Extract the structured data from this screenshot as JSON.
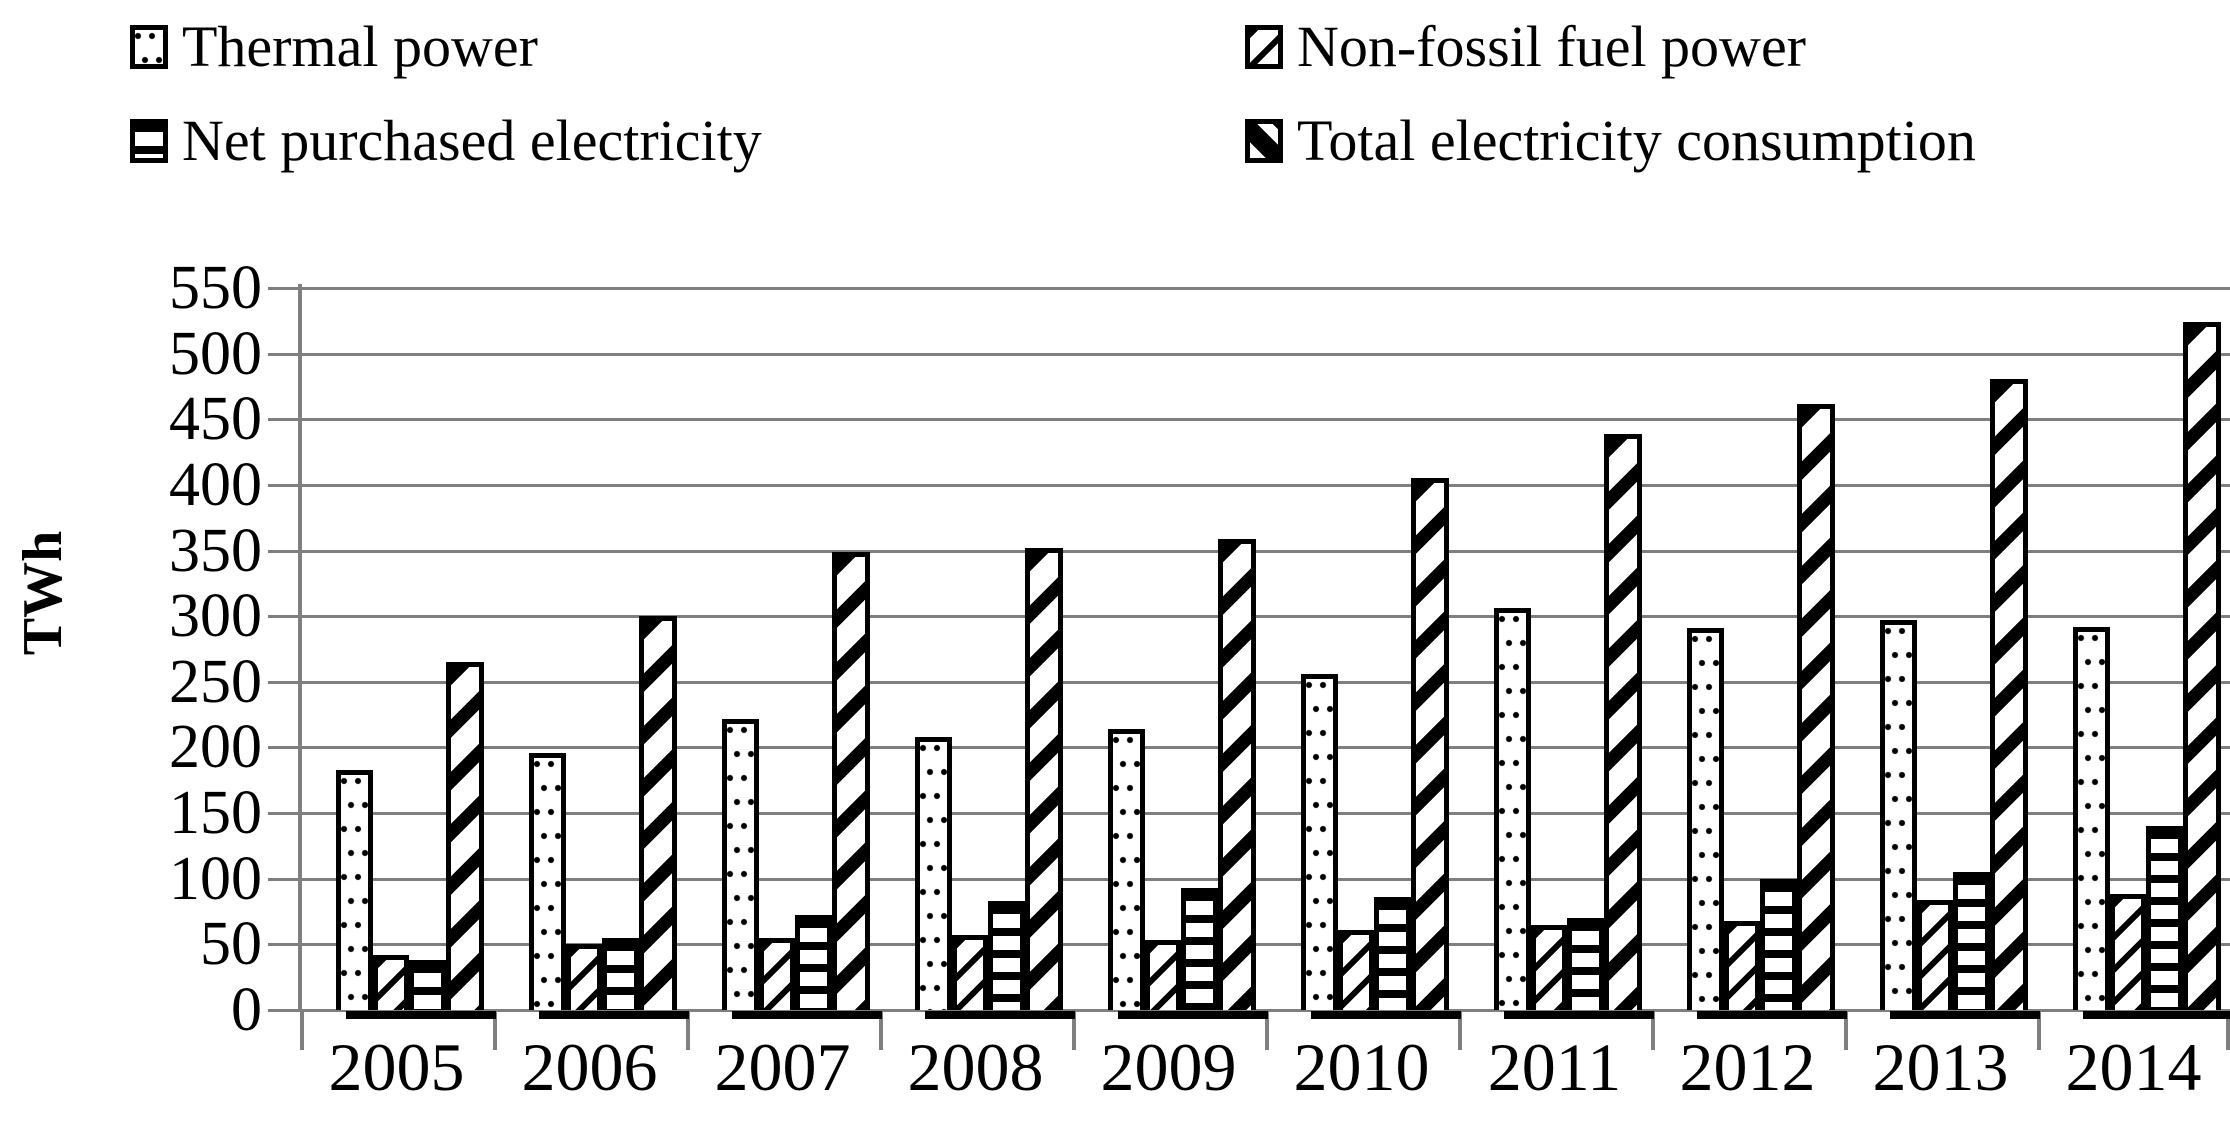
{
  "page": {
    "background": "#ffffff"
  },
  "colors": {
    "grid": "#7f7f7f",
    "bar_border": "#000000",
    "text": "#000000"
  },
  "legend": {
    "position": "top",
    "columns": 2,
    "items": [
      {
        "label": "Thermal power",
        "marker": "dots-square-icon"
      },
      {
        "label": "Non-fossil fuel power",
        "marker": "thin-diagonal-square-icon"
      },
      {
        "label": "Net purchased electricity",
        "marker": "horizontal-lines-square-icon"
      },
      {
        "label": "Total electricity consumption",
        "marker": "thick-diagonal-square-icon"
      }
    ]
  },
  "chart_data": {
    "type": "bar",
    "title": "",
    "xlabel": "",
    "ylabel": "TWh",
    "ylim": [
      0,
      550
    ],
    "ytick_step": 50,
    "grid": true,
    "legend_position": "top",
    "categories": [
      "2005",
      "2006",
      "2007",
      "2008",
      "2009",
      "2010",
      "2011",
      "2012",
      "2013",
      "2014"
    ],
    "series": [
      {
        "name": "Thermal power",
        "pattern": "dots",
        "values": [
          183,
          196,
          222,
          208,
          214,
          256,
          306,
          291,
          297,
          292
        ]
      },
      {
        "name": "Non-fossil fuel power",
        "pattern": "diagonal-thin",
        "values": [
          42,
          50,
          55,
          57,
          53,
          61,
          65,
          68,
          84,
          88
        ]
      },
      {
        "name": "Net purchased electricity",
        "pattern": "horizontal",
        "values": [
          38,
          55,
          72,
          83,
          93,
          86,
          70,
          100,
          105,
          140
        ]
      },
      {
        "name": "Total electricity consumption",
        "pattern": "diagonal-thick",
        "values": [
          265,
          300,
          349,
          352,
          359,
          405,
          439,
          462,
          481,
          524
        ]
      }
    ]
  }
}
